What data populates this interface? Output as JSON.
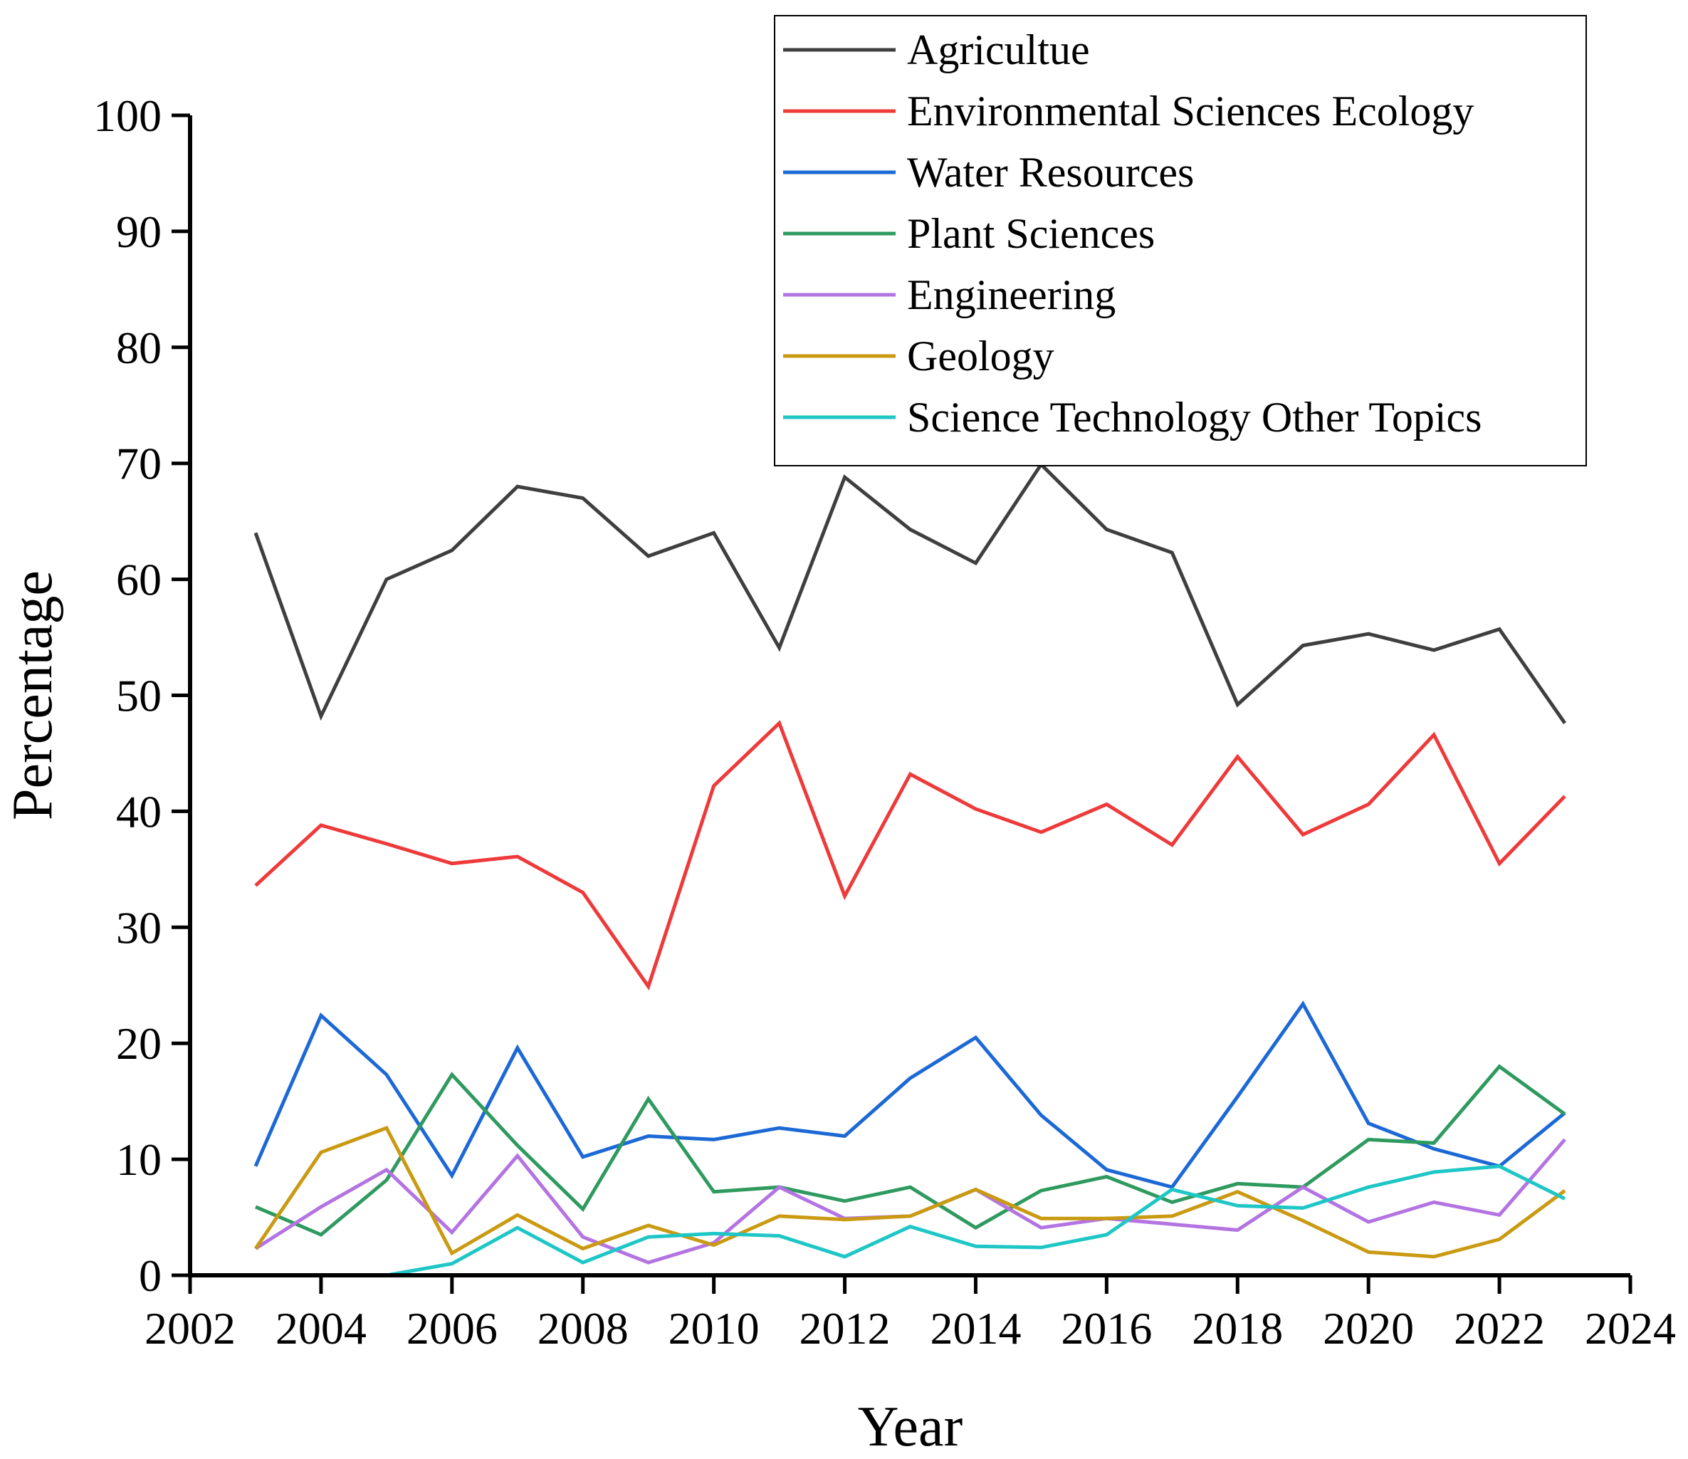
{
  "chart_data": {
    "type": "line",
    "title": "",
    "xlabel": "Year",
    "ylabel": "Percentage",
    "xlim": [
      2002,
      2024
    ],
    "ylim": [
      0,
      100
    ],
    "x_ticks": [
      "2002",
      "2004",
      "2006",
      "2008",
      "2010",
      "2012",
      "2014",
      "2016",
      "2018",
      "2020",
      "2022",
      "2024"
    ],
    "y_ticks": [
      "0",
      "10",
      "20",
      "30",
      "40",
      "50",
      "60",
      "70",
      "80",
      "90",
      "100"
    ],
    "grid": false,
    "legend_position": "top-right",
    "x": [
      2003,
      2004,
      2005,
      2006,
      2007,
      2008,
      2009,
      2010,
      2011,
      2012,
      2013,
      2014,
      2015,
      2016,
      2017,
      2018,
      2019,
      2020,
      2021,
      2022,
      2023
    ],
    "series": [
      {
        "name": "Agricultue",
        "color": "#3f3f3f",
        "values": [
          64,
          48.2,
          60,
          62.5,
          68,
          67,
          62,
          64,
          54.1,
          68.8,
          64.3,
          61.4,
          69.9,
          64.3,
          62.3,
          49.2,
          54.3,
          55.3,
          53.9,
          55.7,
          47.6
        ]
      },
      {
        "name": "Environmental Sciences Ecology",
        "color": "#ee3a3a",
        "values": [
          33.6,
          38.8,
          37.2,
          35.5,
          36.1,
          33,
          24.9,
          42.2,
          47.6,
          32.7,
          43.2,
          40.2,
          38.2,
          40.6,
          37.1,
          44.7,
          38,
          40.6,
          46.6,
          35.5,
          41.3
        ]
      },
      {
        "name": "Water Resources",
        "color": "#1c69d6",
        "values": [
          9.4,
          22.4,
          17.3,
          8.6,
          19.6,
          10.2,
          12,
          11.7,
          12.7,
          12,
          17,
          20.5,
          13.8,
          9.1,
          7.6,
          15.4,
          23.4,
          13.1,
          10.9,
          9.4,
          14
        ]
      },
      {
        "name": "Plant Sciences",
        "color": "#2f9a5f",
        "values": [
          5.9,
          3.5,
          8.2,
          17.3,
          11.2,
          5.7,
          15.2,
          7.2,
          7.6,
          6.4,
          7.6,
          4.1,
          7.3,
          8.5,
          6.3,
          7.9,
          7.6,
          11.7,
          11.4,
          18,
          13.9
        ]
      },
      {
        "name": "Engineering",
        "color": "#b374e2",
        "values": [
          2.3,
          5.9,
          9.1,
          3.7,
          10.3,
          3.3,
          1.1,
          2.8,
          7.6,
          4.9,
          5.1,
          7.4,
          4.1,
          4.9,
          4.4,
          3.9,
          7.6,
          4.6,
          6.3,
          5.2,
          11.7
        ]
      },
      {
        "name": "Geology",
        "color": "#c99a12",
        "values": [
          2.3,
          10.6,
          12.7,
          1.9,
          5.2,
          2.3,
          4.3,
          2.6,
          5.1,
          4.8,
          5.1,
          7.4,
          4.9,
          4.9,
          5.1,
          7.2,
          4.7,
          2,
          1.6,
          3.1,
          7.3
        ]
      },
      {
        "name": "Science Technology Other Topics",
        "color": "#1fc6c6",
        "values": [
          null,
          null,
          0,
          1,
          4.1,
          1.1,
          3.3,
          3.6,
          3.4,
          1.6,
          4.2,
          2.5,
          2.4,
          3.5,
          7.4,
          6,
          5.8,
          7.6,
          8.9,
          9.4,
          6.6
        ]
      }
    ]
  }
}
